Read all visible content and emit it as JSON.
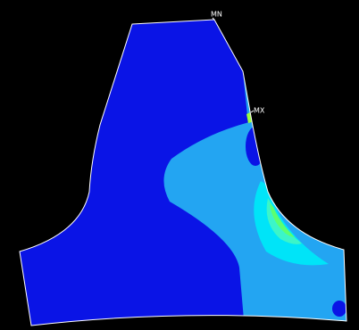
{
  "labels": {
    "min": "MN",
    "max": "MX"
  }
}
